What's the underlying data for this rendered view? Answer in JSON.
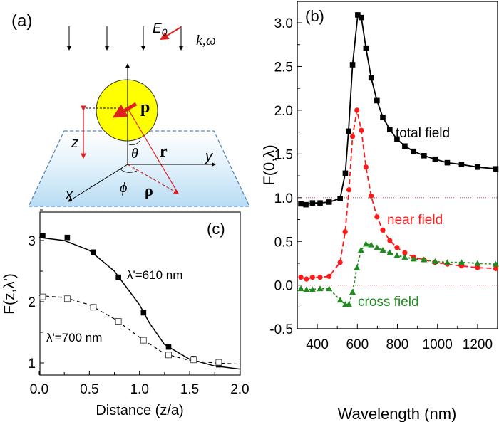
{
  "panel_a": {
    "label": "(a)",
    "e0": "E",
    "e0_sub": "0",
    "k_omega": "k,ω",
    "p": "p",
    "z": "z",
    "theta": "θ",
    "r": "r",
    "x": "x",
    "y": "y",
    "phi": "ϕ",
    "rho": "ρ",
    "colors": {
      "sphere": "#ffff00",
      "vector": "#e0201f",
      "surface": "#bfe0f5",
      "surface_edge": "#4a86c5"
    }
  },
  "chart_data": [
    {
      "panel": "(b)",
      "type": "line",
      "xlabel": "Wavelength (nm)",
      "ylabel": "F(0,λ)",
      "xlim": [
        300,
        1300
      ],
      "ylim": [
        -0.5,
        3.2
      ],
      "xticks": [
        "400",
        "600",
        "800",
        "1000",
        "1200"
      ],
      "yticks": [
        "-0.5",
        "0.0",
        "0.5",
        "1.0",
        "1.5",
        "2.0",
        "2.5",
        "3.0"
      ],
      "reference_lines": [
        1.0,
        0.0
      ],
      "series": [
        {
          "name": "total field",
          "color": "#000000",
          "marker": "square",
          "line": "solid",
          "x": [
            318,
            343,
            376,
            414,
            459,
            514,
            540,
            556,
            576,
            602,
            620,
            643,
            669,
            698,
            727,
            762,
            798,
            837,
            881,
            933,
            988,
            1049,
            1120,
            1200,
            1291
          ],
          "y": [
            0.93,
            0.92,
            0.94,
            0.94,
            0.95,
            0.99,
            1.28,
            1.76,
            2.52,
            3.09,
            3.06,
            2.71,
            2.37,
            2.11,
            1.92,
            1.78,
            1.67,
            1.59,
            1.53,
            1.48,
            1.44,
            1.4,
            1.38,
            1.35,
            1.33
          ]
        },
        {
          "name": "near field",
          "color": "#ff1a1a",
          "marker": "circle",
          "line": "dashed",
          "x": [
            318,
            346,
            376,
            414,
            459,
            514,
            539,
            558,
            576,
            598,
            620,
            643,
            669,
            698,
            727,
            762,
            798,
            837,
            881,
            933,
            988,
            1049,
            1120,
            1200,
            1291
          ],
          "y": [
            0.09,
            0.07,
            0.09,
            0.09,
            0.1,
            0.26,
            0.61,
            1.09,
            1.7,
            2.0,
            1.77,
            1.35,
            1.02,
            0.78,
            0.63,
            0.51,
            0.43,
            0.37,
            0.32,
            0.29,
            0.26,
            0.24,
            0.22,
            0.2,
            0.19
          ]
        },
        {
          "name": "cross field",
          "color": "#1e8c1e",
          "marker": "triangle",
          "line": "dotted",
          "x": [
            318,
            346,
            376,
            414,
            459,
            514,
            540,
            558,
            576,
            598,
            618,
            643,
            669,
            698,
            727,
            762,
            798,
            837,
            881,
            933,
            988,
            1049,
            1120,
            1200,
            1291
          ],
          "y": [
            -0.04,
            -0.05,
            -0.05,
            -0.04,
            -0.04,
            -0.17,
            -0.22,
            -0.22,
            -0.08,
            0.2,
            0.4,
            0.47,
            0.46,
            0.43,
            0.4,
            0.37,
            0.34,
            0.32,
            0.3,
            0.29,
            0.27,
            0.26,
            0.26,
            0.25,
            0.24
          ]
        }
      ]
    },
    {
      "panel": "(c)",
      "type": "line",
      "xlabel": "Distance (z/a)",
      "ylabel": "F(z,λ')",
      "xlim": [
        0,
        2.0
      ],
      "ylim": [
        0.8,
        3.45
      ],
      "xticks": [
        "0.0",
        "0.5",
        "1.0",
        "1.5",
        "2.0"
      ],
      "yticks": [
        "1",
        "2",
        "3"
      ],
      "series": [
        {
          "name": "λ'=610 nm",
          "marker": "filled-square",
          "line": "solid",
          "x": [
            0.035,
            0.28,
            0.54,
            0.79,
            1.04,
            1.29,
            1.54,
            1.79
          ],
          "y": [
            3.08,
            3.05,
            2.81,
            2.4,
            1.82,
            1.26,
            1.07,
            0.97
          ]
        },
        {
          "name": "λ'=700 nm",
          "marker": "open-square",
          "line": "dashed",
          "x": [
            0.035,
            0.28,
            0.54,
            0.79,
            1.04,
            1.29,
            1.54,
            1.79
          ],
          "y": [
            2.08,
            2.05,
            1.91,
            1.68,
            1.37,
            1.13,
            1.05,
            1.01
          ]
        }
      ]
    }
  ]
}
